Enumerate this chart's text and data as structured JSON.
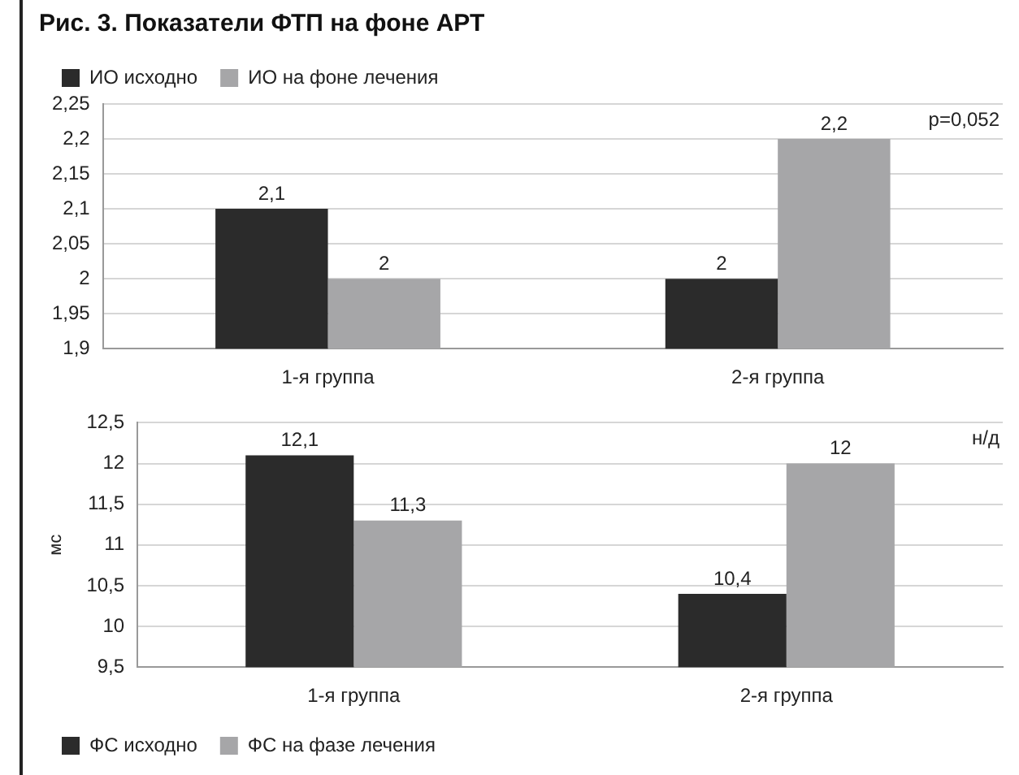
{
  "chart_data": [
    {
      "type": "bar",
      "title": "Рис. 3. Показатели ФТП на фоне АРТ",
      "categories": [
        "1-я группа",
        "2-я группа"
      ],
      "series": [
        {
          "name": "ИО исходно",
          "color": "#2b2b2b",
          "values": [
            2.1,
            2
          ],
          "value_labels": [
            "2,1",
            "2"
          ]
        },
        {
          "name": "ИО на фоне лечения",
          "color": "#a6a6a8",
          "values": [
            2,
            2.2
          ],
          "value_labels": [
            "2",
            "2,2"
          ]
        }
      ],
      "ylim": [
        1.9,
        2.25
      ],
      "yticks": [
        {
          "value": 1.9,
          "label": "1,9"
        },
        {
          "value": 1.95,
          "label": "1,95"
        },
        2,
        {
          "value": 2.05,
          "label": "2,05"
        },
        {
          "value": 2.1,
          "label": "2,1"
        },
        {
          "value": 2.15,
          "label": "2,15"
        },
        {
          "value": 2.2,
          "label": "2,2"
        },
        {
          "value": 2.25,
          "label": "2,25"
        }
      ],
      "grid": "y",
      "legend": "top left",
      "annotations": [
        "p=0,052"
      ]
    },
    {
      "type": "bar",
      "ylabel": "мс",
      "categories": [
        "1-я группа",
        "2-я группа"
      ],
      "series": [
        {
          "name": "ФС исходно",
          "color": "#2b2b2b",
          "values": [
            12.1,
            10.4
          ],
          "value_labels": [
            "12,1",
            "10,4"
          ]
        },
        {
          "name": "ФС на фазе лечения",
          "color": "#a6a6a8",
          "values": [
            11.3,
            12
          ],
          "value_labels": [
            "11,3",
            "12"
          ]
        }
      ],
      "ylim": [
        9.5,
        12.5
      ],
      "yticks": [
        {
          "value": 9.5,
          "label": "9,5"
        },
        10,
        {
          "value": 10.5,
          "label": "10,5"
        },
        11,
        {
          "value": 11.5,
          "label": "11,5"
        },
        12,
        {
          "value": 12.5,
          "label": "12,5"
        }
      ],
      "grid": "y",
      "legend": "bottom left",
      "annotations": [
        "н/д"
      ]
    }
  ]
}
